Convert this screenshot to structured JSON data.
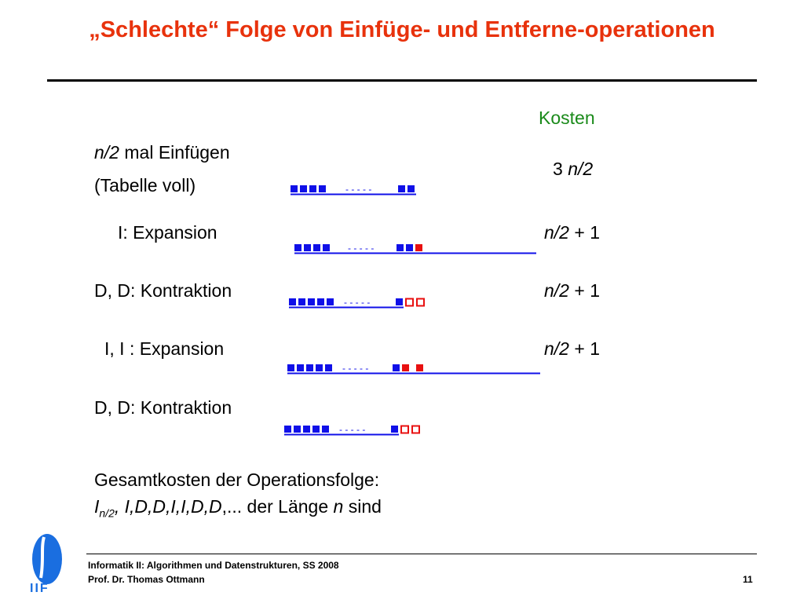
{
  "title": "„Schlechte“ Folge von Einfüge- und Entferne-operationen",
  "kosten_header": "Kosten",
  "rows": [
    {
      "label_n": "n/2",
      "label_rest": " mal Einfügen",
      "label_line2": "(Tabelle voll)",
      "cost_num": "3 ",
      "cost_n": "n/2"
    },
    {
      "label": "I: Expansion",
      "cost_n": "n/2",
      "cost_rest": " + 1"
    },
    {
      "label": "D, D: Kontraktion",
      "cost_n": "n/2",
      "cost_rest": " + 1"
    },
    {
      "label": "I, I : Expansion",
      "cost_n": "n/2",
      "cost_rest": " + 1"
    },
    {
      "label": "D, D: Kontraktion"
    }
  ],
  "summary": {
    "line1": "Gesamtkosten der Operationsfolge:",
    "I": "I",
    "sub": "n/2",
    "seq": ", I,D,D,I,I,D,D",
    "rest": ",... der Länge ",
    "n": "n",
    "end": " sind"
  },
  "arrays": {
    "ellipsis": "- - - - -"
  },
  "colors": {
    "title": "#e8320c",
    "kosten": "#1a8a1a",
    "blue": "#1010e8",
    "red": "#e81010"
  },
  "footer": {
    "logo_text": "IIF",
    "course": "Informatik II: Algorithmen und Datenstrukturen, SS 2008",
    "author": "Prof. Dr. Thomas Ottmann",
    "page": "11"
  }
}
